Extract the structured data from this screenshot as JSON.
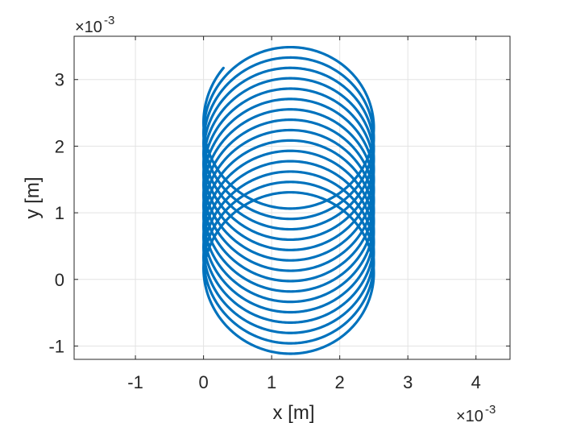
{
  "chart_data": {
    "type": "line",
    "xlabel": "x [m]",
    "ylabel": "y [m]",
    "x_multiplier_label": "×10",
    "x_multiplier_exp": "-3",
    "y_multiplier_label": "×10",
    "y_multiplier_exp": "-3",
    "xlim": [
      -1.9,
      4.5
    ],
    "ylim": [
      -1.2,
      3.65
    ],
    "xticks": [
      -1,
      0,
      1,
      2,
      3,
      4
    ],
    "xtick_labels": [
      "-1",
      "0",
      "1",
      "2",
      "3",
      "4"
    ],
    "yticks": [
      -1,
      0,
      1,
      2,
      3
    ],
    "ytick_labels": [
      "-1",
      "0",
      "1",
      "2",
      "3"
    ],
    "grid": true,
    "series": [
      {
        "color": "#0072BD",
        "curve": {
          "kind": "drifting-circle-spiral",
          "center_x": 1.25,
          "radius": 1.25,
          "center_y_start": 2.37,
          "center_y_end": 0.02,
          "turns": 15.1,
          "start_angle_deg": 140
        }
      }
    ]
  }
}
